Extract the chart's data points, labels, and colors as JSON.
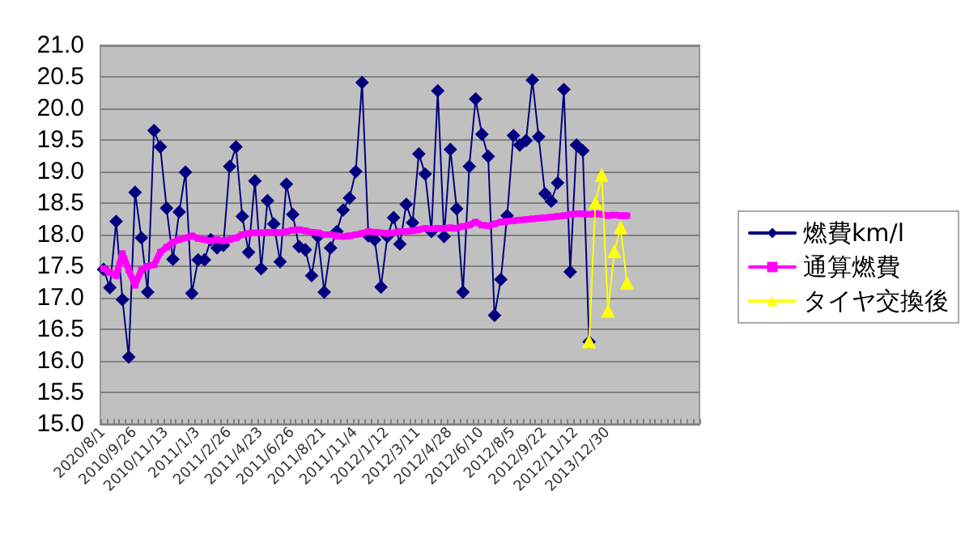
{
  "chart_data": {
    "type": "line",
    "categories": [
      "2020/8/1",
      null,
      null,
      null,
      null,
      "2010/9/26",
      null,
      null,
      null,
      null,
      "2010/11/13",
      null,
      null,
      null,
      null,
      "2011/1/3",
      null,
      null,
      null,
      null,
      "2011/2/26",
      null,
      null,
      null,
      null,
      "2011/4/23",
      null,
      null,
      null,
      null,
      "2011/6/26",
      null,
      null,
      null,
      null,
      "2011/8/21",
      null,
      null,
      null,
      null,
      "2011/11/4",
      null,
      null,
      null,
      null,
      "2012/1/12",
      null,
      null,
      null,
      null,
      "2012/3/11",
      null,
      null,
      null,
      null,
      "2012/4/28",
      null,
      null,
      null,
      null,
      "2012/6/10",
      null,
      null,
      null,
      null,
      "2012/8/5",
      null,
      null,
      null,
      null,
      "2012/9/22",
      null,
      null,
      null,
      null,
      "2012/11/12",
      null,
      null,
      null,
      null,
      "2013/12/30",
      null,
      null,
      null,
      null,
      null,
      null,
      null,
      null,
      null,
      null,
      null,
      null,
      null,
      null
    ],
    "series": [
      {
        "name": "燃費km/l",
        "color": "#000080",
        "marker": "diamond",
        "values": [
          17.45,
          17.16,
          18.21,
          16.97,
          16.06,
          18.67,
          17.95,
          17.09,
          19.65,
          19.39,
          18.42,
          17.61,
          18.36,
          18.99,
          17.07,
          17.6,
          17.6,
          17.92,
          17.79,
          17.83,
          19.08,
          19.39,
          18.29,
          17.72,
          18.85,
          17.46,
          18.54,
          18.17,
          17.57,
          18.8,
          18.32,
          17.81,
          17.76,
          17.35,
          17.97,
          17.09,
          17.79,
          18.05,
          18.39,
          18.58,
          19.0,
          20.41,
          17.98,
          17.92,
          17.17,
          17.97,
          18.27,
          17.85,
          18.48,
          18.19,
          19.28,
          18.96,
          18.05,
          20.28,
          17.97,
          19.35,
          18.41,
          17.09,
          19.08,
          20.15,
          19.59,
          19.24,
          16.72,
          17.29,
          18.3,
          19.57,
          19.42,
          19.49,
          20.45,
          19.55,
          18.65,
          18.53,
          18.82,
          20.3,
          17.41,
          19.42,
          19.33,
          16.3,
          null,
          null,
          null,
          null,
          null,
          null,
          null,
          null,
          null,
          null,
          null,
          null,
          null,
          null,
          null,
          null,
          null
        ]
      },
      {
        "name": "通算燃費",
        "color": "#ff00ff",
        "marker": "square",
        "values": [
          17.46,
          17.4,
          17.35,
          17.7,
          17.44,
          17.2,
          17.44,
          17.5,
          17.52,
          17.72,
          17.8,
          17.88,
          17.92,
          17.95,
          17.98,
          17.94,
          17.92,
          17.9,
          17.92,
          17.9,
          17.92,
          17.95,
          18.0,
          18.02,
          18.03,
          18.03,
          18.04,
          18.04,
          18.03,
          18.05,
          18.07,
          18.08,
          18.06,
          18.04,
          18.03,
          18.0,
          18.0,
          17.98,
          17.97,
          17.98,
          18.0,
          18.02,
          18.05,
          18.04,
          18.03,
          18.02,
          18.03,
          18.05,
          18.05,
          18.06,
          18.08,
          18.1,
          18.09,
          18.1,
          18.1,
          18.11,
          18.1,
          18.13,
          18.15,
          18.2,
          18.15,
          18.14,
          18.17,
          18.2,
          18.21,
          18.22,
          18.23,
          18.24,
          18.25,
          18.26,
          18.27,
          18.28,
          18.29,
          18.3,
          18.32,
          18.33,
          18.33,
          18.32,
          18.33,
          18.32,
          18.3,
          18.31,
          18.3,
          18.3,
          null,
          null,
          null,
          null,
          null,
          null,
          null,
          null,
          null,
          null,
          null
        ]
      },
      {
        "name": "タイヤ交換後",
        "color": "#ffff00",
        "marker": "triangle",
        "values": [
          null,
          null,
          null,
          null,
          null,
          null,
          null,
          null,
          null,
          null,
          null,
          null,
          null,
          null,
          null,
          null,
          null,
          null,
          null,
          null,
          null,
          null,
          null,
          null,
          null,
          null,
          null,
          null,
          null,
          null,
          null,
          null,
          null,
          null,
          null,
          null,
          null,
          null,
          null,
          null,
          null,
          null,
          null,
          null,
          null,
          null,
          null,
          null,
          null,
          null,
          null,
          null,
          null,
          null,
          null,
          null,
          null,
          null,
          null,
          null,
          null,
          null,
          null,
          null,
          null,
          null,
          null,
          null,
          null,
          null,
          null,
          null,
          null,
          null,
          null,
          null,
          null,
          16.3,
          18.5,
          18.94,
          16.79,
          17.73,
          18.11,
          17.23,
          null,
          null,
          null,
          null,
          null,
          null,
          null,
          null,
          null,
          null,
          null
        ]
      }
    ],
    "ylim": [
      15,
      21
    ],
    "yticks": [
      {
        "value": 15,
        "label": "15.0"
      },
      {
        "value": 15.5,
        "label": "15.5"
      },
      {
        "value": 16,
        "label": "16.0"
      },
      {
        "value": 16.5,
        "label": "16.5"
      },
      {
        "value": 17,
        "label": "17.0"
      },
      {
        "value": 17.5,
        "label": "17.5"
      },
      {
        "value": 18,
        "label": "18.0"
      },
      {
        "value": 18.5,
        "label": "18.5"
      },
      {
        "value": 19,
        "label": "19.0"
      },
      {
        "value": 19.5,
        "label": "19.5"
      },
      {
        "value": 20,
        "label": "20.0"
      },
      {
        "value": 20.5,
        "label": "20.5"
      },
      {
        "value": 21,
        "label": "21.0"
      }
    ],
    "grid": "y",
    "legend": "right",
    "line_style": "solid"
  }
}
